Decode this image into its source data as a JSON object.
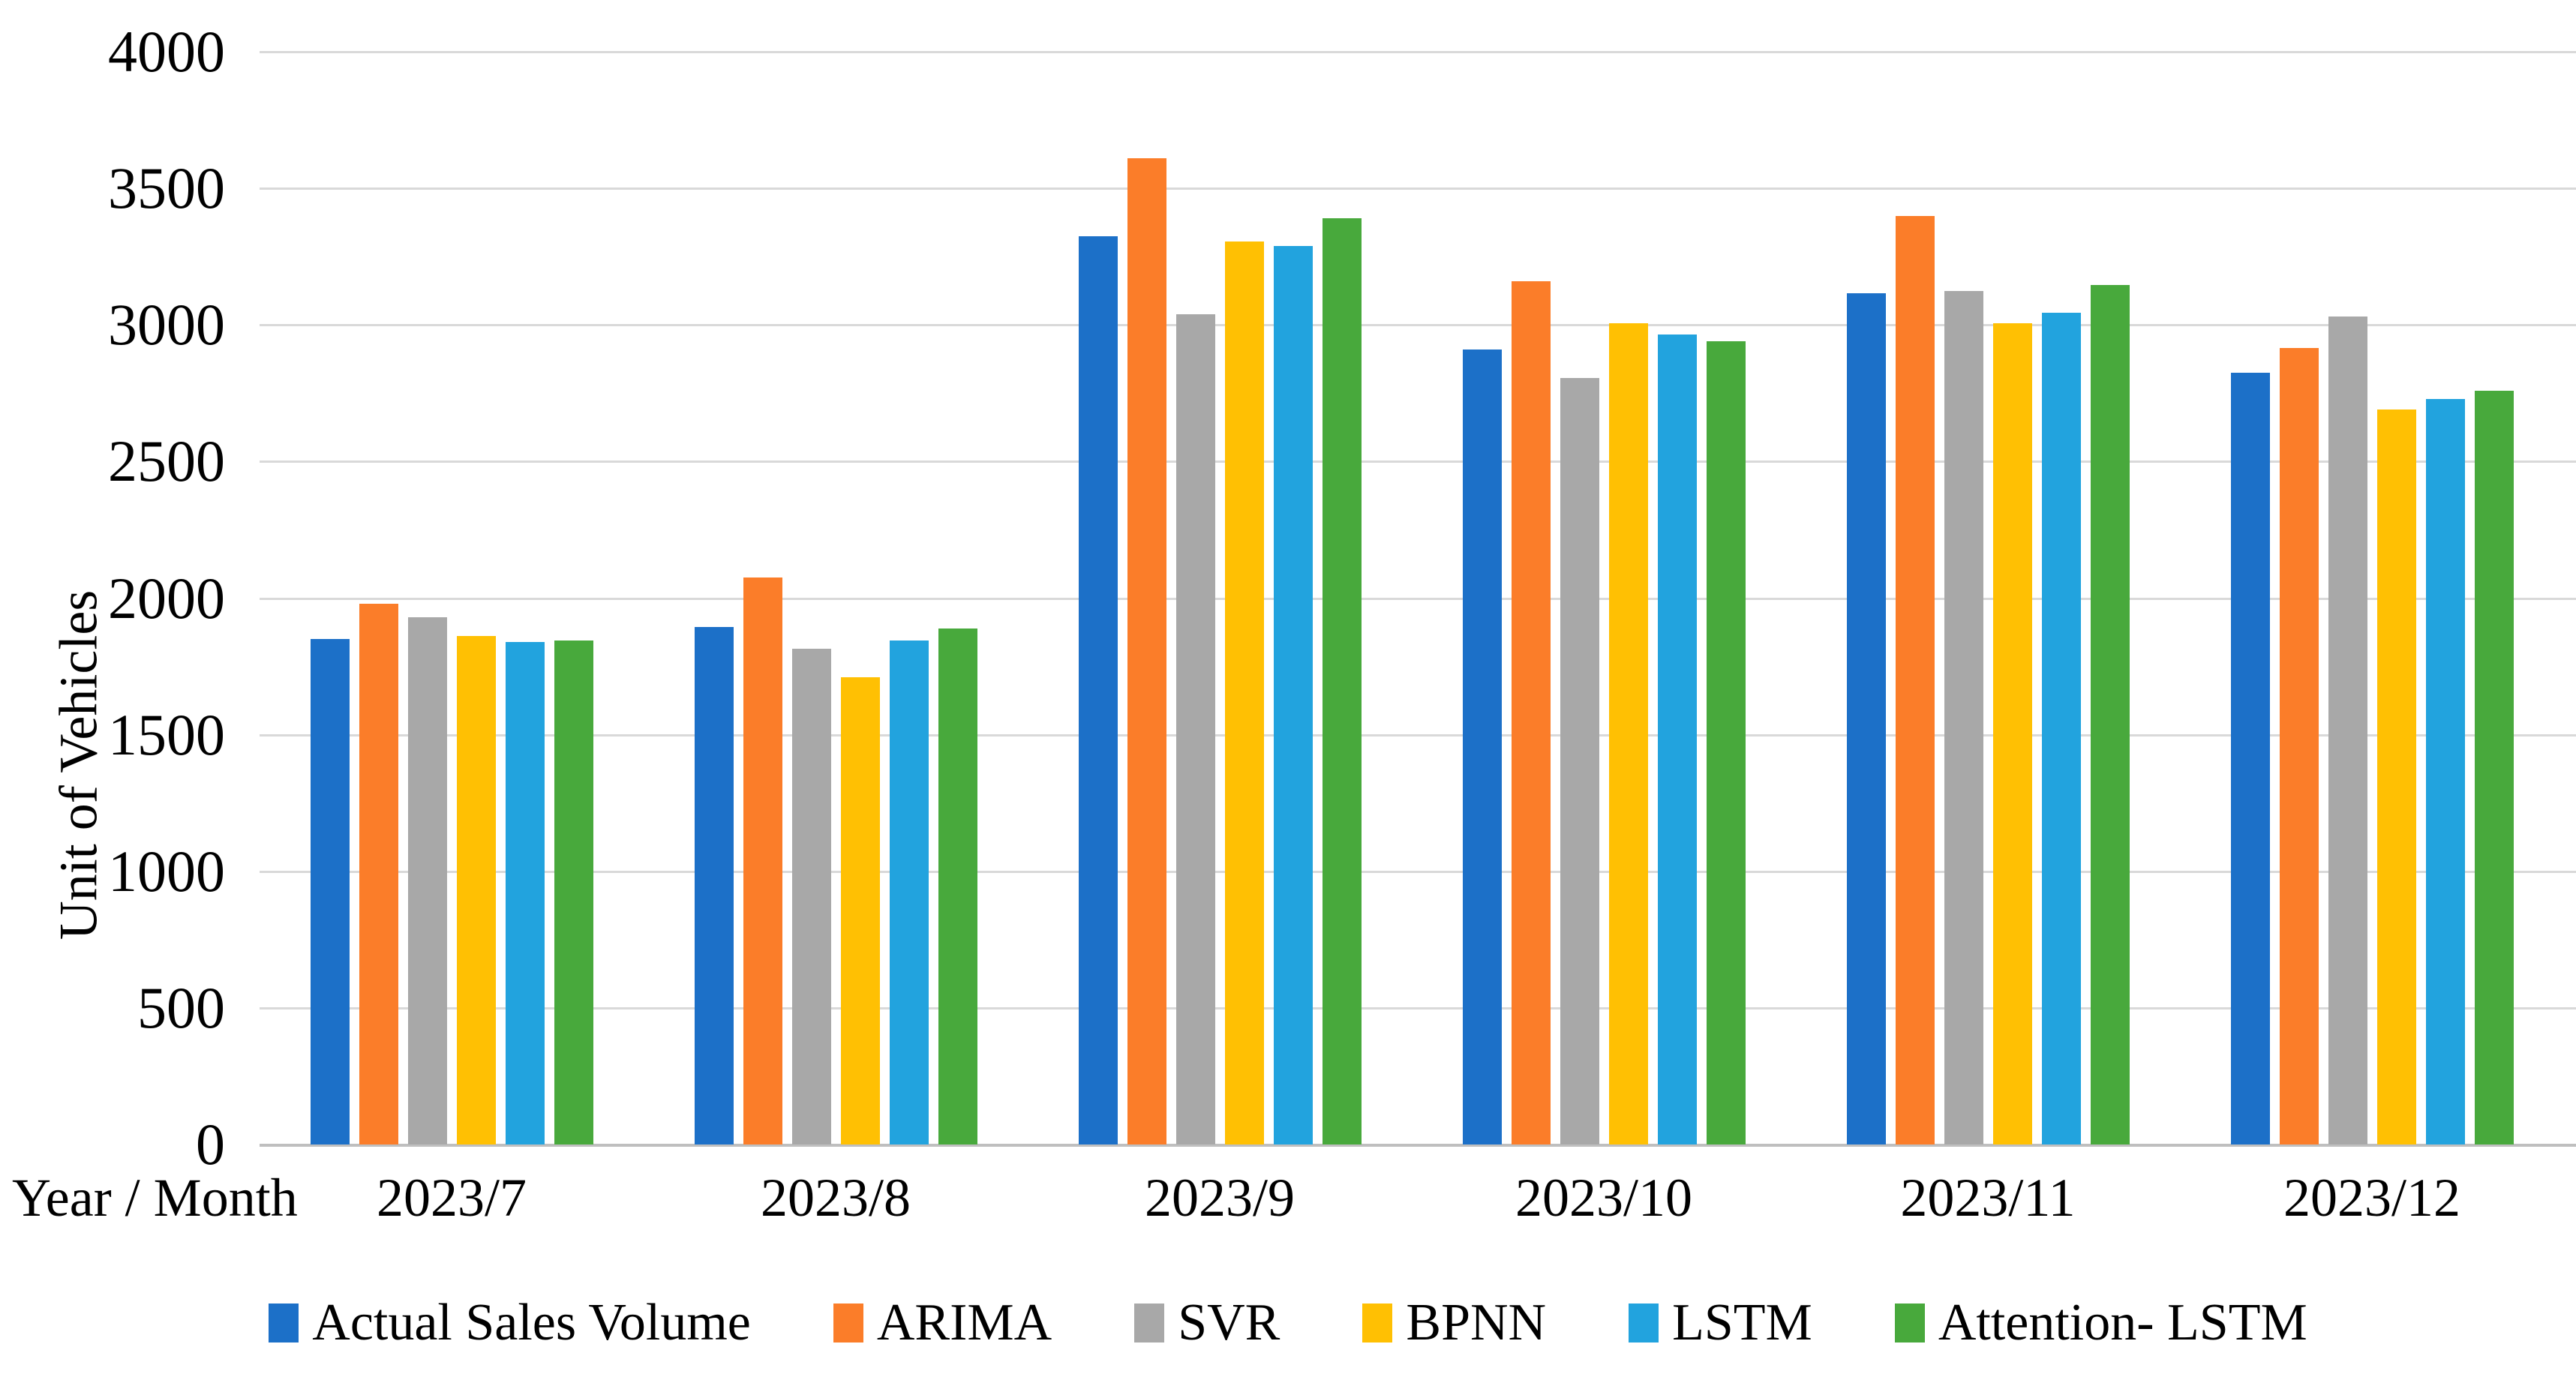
{
  "chart_data": {
    "type": "bar",
    "title": "",
    "xlabel": "Year / Month",
    "ylabel": "Unit of Vehicles",
    "ylim": [
      0,
      4000
    ],
    "yticks": [
      0,
      500,
      1000,
      1500,
      2000,
      2500,
      3000,
      3500,
      4000
    ],
    "grid": true,
    "legend_position": "bottom",
    "categories": [
      "2023/7",
      "2023/8",
      "2023/9",
      "2023/10",
      "2023/11",
      "2023/12"
    ],
    "series": [
      {
        "name": "Actual Sales Volume",
        "color": "#1C70C8",
        "values": [
          1850,
          1895,
          3325,
          2910,
          3115,
          2825
        ]
      },
      {
        "name": "ARIMA",
        "color": "#FB7D29",
        "values": [
          1980,
          2075,
          3610,
          3160,
          3400,
          2915
        ]
      },
      {
        "name": "SVR",
        "color": "#A8A8A8",
        "values": [
          1930,
          1815,
          3040,
          2805,
          3125,
          3030
        ]
      },
      {
        "name": "BPNN",
        "color": "#FFC003",
        "values": [
          1860,
          1710,
          3305,
          3005,
          3005,
          2690
        ]
      },
      {
        "name": "LSTM",
        "color": "#22A3DE",
        "values": [
          1840,
          1845,
          3290,
          2965,
          3045,
          2730
        ]
      },
      {
        "name": "Attention- LSTM",
        "color": "#48A93C",
        "values": [
          1845,
          1890,
          3390,
          2940,
          3145,
          2760
        ]
      }
    ]
  },
  "colors": {
    "background": "#FFFFFF",
    "gridline": "#D9D9D9",
    "axis_line": "#BFBFBF",
    "text": "#000000"
  }
}
